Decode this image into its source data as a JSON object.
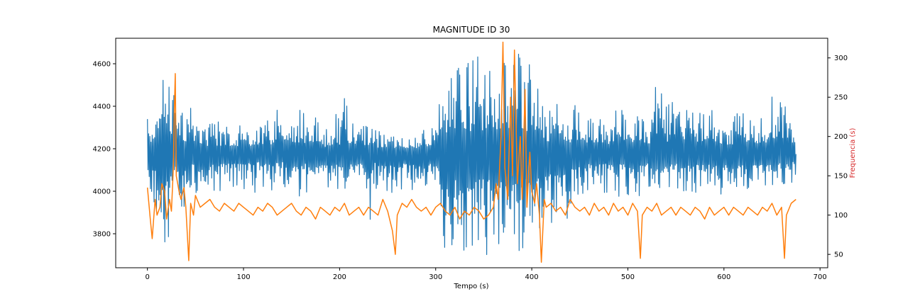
{
  "chart_data": {
    "type": "line",
    "title": "MAGNITUDE ID 30",
    "xlabel": "Tempo (s)",
    "ylabel": "",
    "y2label": "Frequencia (s)",
    "y2label_color": "#d62728",
    "xlim": [
      -33,
      708
    ],
    "ylim": [
      3640,
      4720
    ],
    "y2lim": [
      33,
      325
    ],
    "x_ticks": [
      0,
      100,
      200,
      300,
      400,
      500,
      600,
      700
    ],
    "y_ticks": [
      3800,
      4000,
      4200,
      4400,
      4600
    ],
    "y2_ticks": [
      50,
      100,
      150,
      200,
      250,
      300
    ],
    "grid": false,
    "series": [
      {
        "axis": "left",
        "color": "#1f77b4",
        "x": [
          0,
          5,
          10,
          15,
          20,
          25,
          30,
          35,
          40,
          45,
          50,
          55,
          60,
          65,
          70,
          75,
          80,
          85,
          90,
          95,
          100,
          105,
          110,
          115,
          120,
          125,
          130,
          135,
          140,
          145,
          150,
          155,
          160,
          165,
          170,
          175,
          180,
          185,
          190,
          195,
          200,
          205,
          210,
          215,
          220,
          225,
          230,
          235,
          240,
          245,
          250,
          255,
          260,
          265,
          270,
          275,
          280,
          285,
          290,
          295,
          300,
          305,
          310,
          315,
          320,
          325,
          330,
          335,
          340,
          345,
          350,
          355,
          360,
          365,
          370,
          375,
          380,
          385,
          390,
          395,
          400,
          405,
          410,
          415,
          420,
          425,
          430,
          435,
          440,
          445,
          450,
          455,
          460,
          465,
          470,
          475,
          480,
          485,
          490,
          495,
          500,
          505,
          510,
          515,
          520,
          525,
          530,
          535,
          540,
          545,
          550,
          555,
          560,
          565,
          570,
          575,
          580,
          585,
          590,
          595,
          600,
          605,
          610,
          615,
          620,
          625,
          630,
          635,
          640,
          645,
          650,
          655,
          660,
          665,
          670,
          675
        ],
        "y_max": [
          4360,
          4400,
          4540,
          4510,
          4560,
          4500,
          4590,
          4430,
          4420,
          4400,
          4370,
          4360,
          4320,
          4340,
          4320,
          4330,
          4310,
          4300,
          4320,
          4330,
          4340,
          4320,
          4300,
          4320,
          4340,
          4380,
          4350,
          4420,
          4360,
          4340,
          4380,
          4400,
          4390,
          4360,
          4350,
          4380,
          4330,
          4320,
          4300,
          4380,
          4360,
          4520,
          4380,
          4350,
          4360,
          4340,
          4330,
          4300,
          4280,
          4300,
          4280,
          4290,
          4270,
          4300,
          4290,
          4300,
          4280,
          4290,
          4300,
          4320,
          4330,
          4630,
          4550,
          4620,
          4660,
          4630,
          4650,
          4600,
          4620,
          4640,
          4600,
          4620,
          4580,
          4640,
          4660,
          4660,
          4640,
          4680,
          4620,
          4620,
          4680,
          4520,
          4440,
          4380,
          4400,
          4460,
          4460,
          4380,
          4400,
          4420,
          4440,
          4360,
          4350,
          4340,
          4380,
          4340,
          4360,
          4420,
          4400,
          4380,
          4360,
          4380,
          4500,
          4350,
          4340,
          4380,
          4560,
          4540,
          4400,
          4420,
          4540,
          4400,
          4380,
          4410,
          4380,
          4380,
          4420,
          4400,
          4360,
          4340,
          4330,
          4360,
          4340,
          4400,
          4410,
          4390,
          4360,
          4340,
          4360,
          4360,
          4490,
          4440,
          4420,
          4400,
          4380,
          4360
        ],
        "y_min": [
          3870,
          3880,
          3870,
          3840,
          3700,
          3900,
          3860,
          3750,
          3900,
          3980,
          3960,
          4000,
          4040,
          4000,
          3990,
          4000,
          3970,
          4010,
          4000,
          4010,
          3990,
          4000,
          3980,
          4000,
          4020,
          3990,
          4000,
          4000,
          4010,
          3960,
          3990,
          3980,
          3970,
          3990,
          4000,
          4000,
          3970,
          3980,
          4000,
          3990,
          3970,
          3980,
          4000,
          4000,
          4000,
          3990,
          3700,
          4010,
          4000,
          4000,
          3960,
          3950,
          4000,
          4000,
          4010,
          4000,
          4000,
          4010,
          4010,
          4000,
          3980,
          3850,
          3700,
          3740,
          3720,
          3690,
          3700,
          3700,
          3690,
          3700,
          3720,
          3680,
          3720,
          3700,
          3690,
          3780,
          3680,
          3690,
          3700,
          3720,
          3700,
          3780,
          3800,
          3860,
          3800,
          3780,
          3860,
          3780,
          3900,
          3900,
          3960,
          3990,
          3980,
          4000,
          4000,
          3990,
          3990,
          3980,
          3970,
          3990,
          3980,
          3980,
          3960,
          3980,
          3990,
          3980,
          3980,
          3990,
          4000,
          4000,
          3990,
          3990,
          3970,
          4000,
          3990,
          3980,
          3980,
          4000,
          3990,
          3960,
          3980,
          3990,
          4000,
          3990,
          3980,
          4000,
          4000,
          3990,
          4000,
          4000,
          3990,
          4000,
          4010,
          4000,
          4010,
          4040
        ],
        "y_center": [
          4180,
          4170,
          4190,
          4150,
          4170,
          4190,
          4210,
          4180,
          4170,
          4180,
          4190,
          4180,
          4170,
          4175,
          4180,
          4170,
          4185,
          4175,
          4180,
          4170,
          4175,
          4180,
          4170,
          4185,
          4180,
          4175,
          4170,
          4180,
          4185,
          4175,
          4180,
          4170,
          4175,
          4180,
          4185,
          4175,
          4180,
          4170,
          4175,
          4180,
          4170,
          4180,
          4175,
          4170,
          4180,
          4175,
          4170,
          4180,
          4175,
          4170,
          4175,
          4180,
          4170,
          4175,
          4170,
          4180,
          4175,
          4170,
          4180,
          4175,
          4170,
          4175,
          4180,
          4175,
          4170,
          4180,
          4175,
          4170,
          4180,
          4175,
          4170,
          4180,
          4175,
          4170,
          4180,
          4175,
          4170,
          4180,
          4175,
          4170,
          4180,
          4175,
          4170,
          4180,
          4175,
          4170,
          4180,
          4175,
          4170,
          4180,
          4175,
          4170,
          4180,
          4175,
          4170,
          4180,
          4175,
          4170,
          4180,
          4175,
          4170,
          4180,
          4175,
          4170,
          4180,
          4175,
          4170,
          4180,
          4175,
          4170,
          4180,
          4175,
          4170,
          4180,
          4175,
          4170,
          4180,
          4175,
          4170,
          4180,
          4175,
          4170,
          4180,
          4175,
          4170,
          4180,
          4175,
          4170,
          4180,
          4175,
          4170,
          4180,
          4175,
          4170,
          4180,
          4175
        ]
      },
      {
        "axis": "right",
        "color": "#ff7f0e",
        "x": [
          0,
          3,
          5,
          8,
          10,
          13,
          15,
          18,
          20,
          23,
          25,
          27,
          28,
          29,
          30,
          33,
          35,
          38,
          40,
          43,
          45,
          48,
          50,
          55,
          60,
          65,
          70,
          75,
          80,
          85,
          90,
          95,
          100,
          105,
          110,
          115,
          120,
          125,
          130,
          135,
          140,
          145,
          150,
          155,
          160,
          165,
          170,
          175,
          180,
          185,
          190,
          195,
          200,
          205,
          210,
          215,
          220,
          225,
          230,
          235,
          240,
          245,
          250,
          255,
          258,
          260,
          265,
          270,
          275,
          280,
          285,
          290,
          295,
          300,
          305,
          310,
          315,
          320,
          325,
          330,
          335,
          340,
          345,
          350,
          355,
          360,
          363,
          365,
          368,
          370,
          372,
          375,
          378,
          380,
          382,
          385,
          388,
          390,
          393,
          395,
          398,
          400,
          403,
          405,
          408,
          410,
          413,
          415,
          420,
          425,
          430,
          435,
          440,
          445,
          450,
          455,
          460,
          465,
          470,
          475,
          480,
          485,
          490,
          495,
          500,
          505,
          510,
          513,
          515,
          520,
          525,
          530,
          535,
          540,
          545,
          550,
          555,
          560,
          565,
          570,
          575,
          580,
          585,
          590,
          595,
          600,
          605,
          610,
          615,
          620,
          625,
          630,
          635,
          640,
          645,
          650,
          655,
          660,
          663,
          665,
          670,
          675
        ],
        "y": [
          135,
          95,
          70,
          120,
          100,
          110,
          140,
          130,
          95,
          120,
          105,
          160,
          235,
          280,
          150,
          130,
          120,
          135,
          110,
          42,
          115,
          100,
          125,
          110,
          115,
          120,
          110,
          105,
          115,
          110,
          105,
          115,
          110,
          105,
          100,
          110,
          105,
          115,
          110,
          100,
          105,
          110,
          115,
          105,
          100,
          110,
          105,
          95,
          110,
          105,
          100,
          110,
          105,
          115,
          100,
          105,
          110,
          100,
          110,
          105,
          100,
          120,
          105,
          80,
          50,
          100,
          115,
          110,
          120,
          110,
          105,
          110,
          100,
          110,
          115,
          105,
          100,
          110,
          95,
          105,
          100,
          110,
          105,
          95,
          100,
          110,
          140,
          120,
          200,
          320,
          160,
          120,
          250,
          150,
          310,
          140,
          200,
          120,
          260,
          110,
          180,
          130,
          115,
          140,
          100,
          40,
          120,
          110,
          115,
          105,
          110,
          100,
          120,
          110,
          105,
          110,
          100,
          115,
          105,
          110,
          100,
          115,
          105,
          110,
          100,
          115,
          105,
          45,
          100,
          110,
          105,
          115,
          100,
          105,
          110,
          100,
          110,
          105,
          100,
          110,
          105,
          95,
          110,
          100,
          105,
          110,
          100,
          110,
          105,
          100,
          110,
          105,
          100,
          110,
          105,
          115,
          100,
          110,
          45,
          100,
          115,
          120
        ]
      }
    ]
  }
}
